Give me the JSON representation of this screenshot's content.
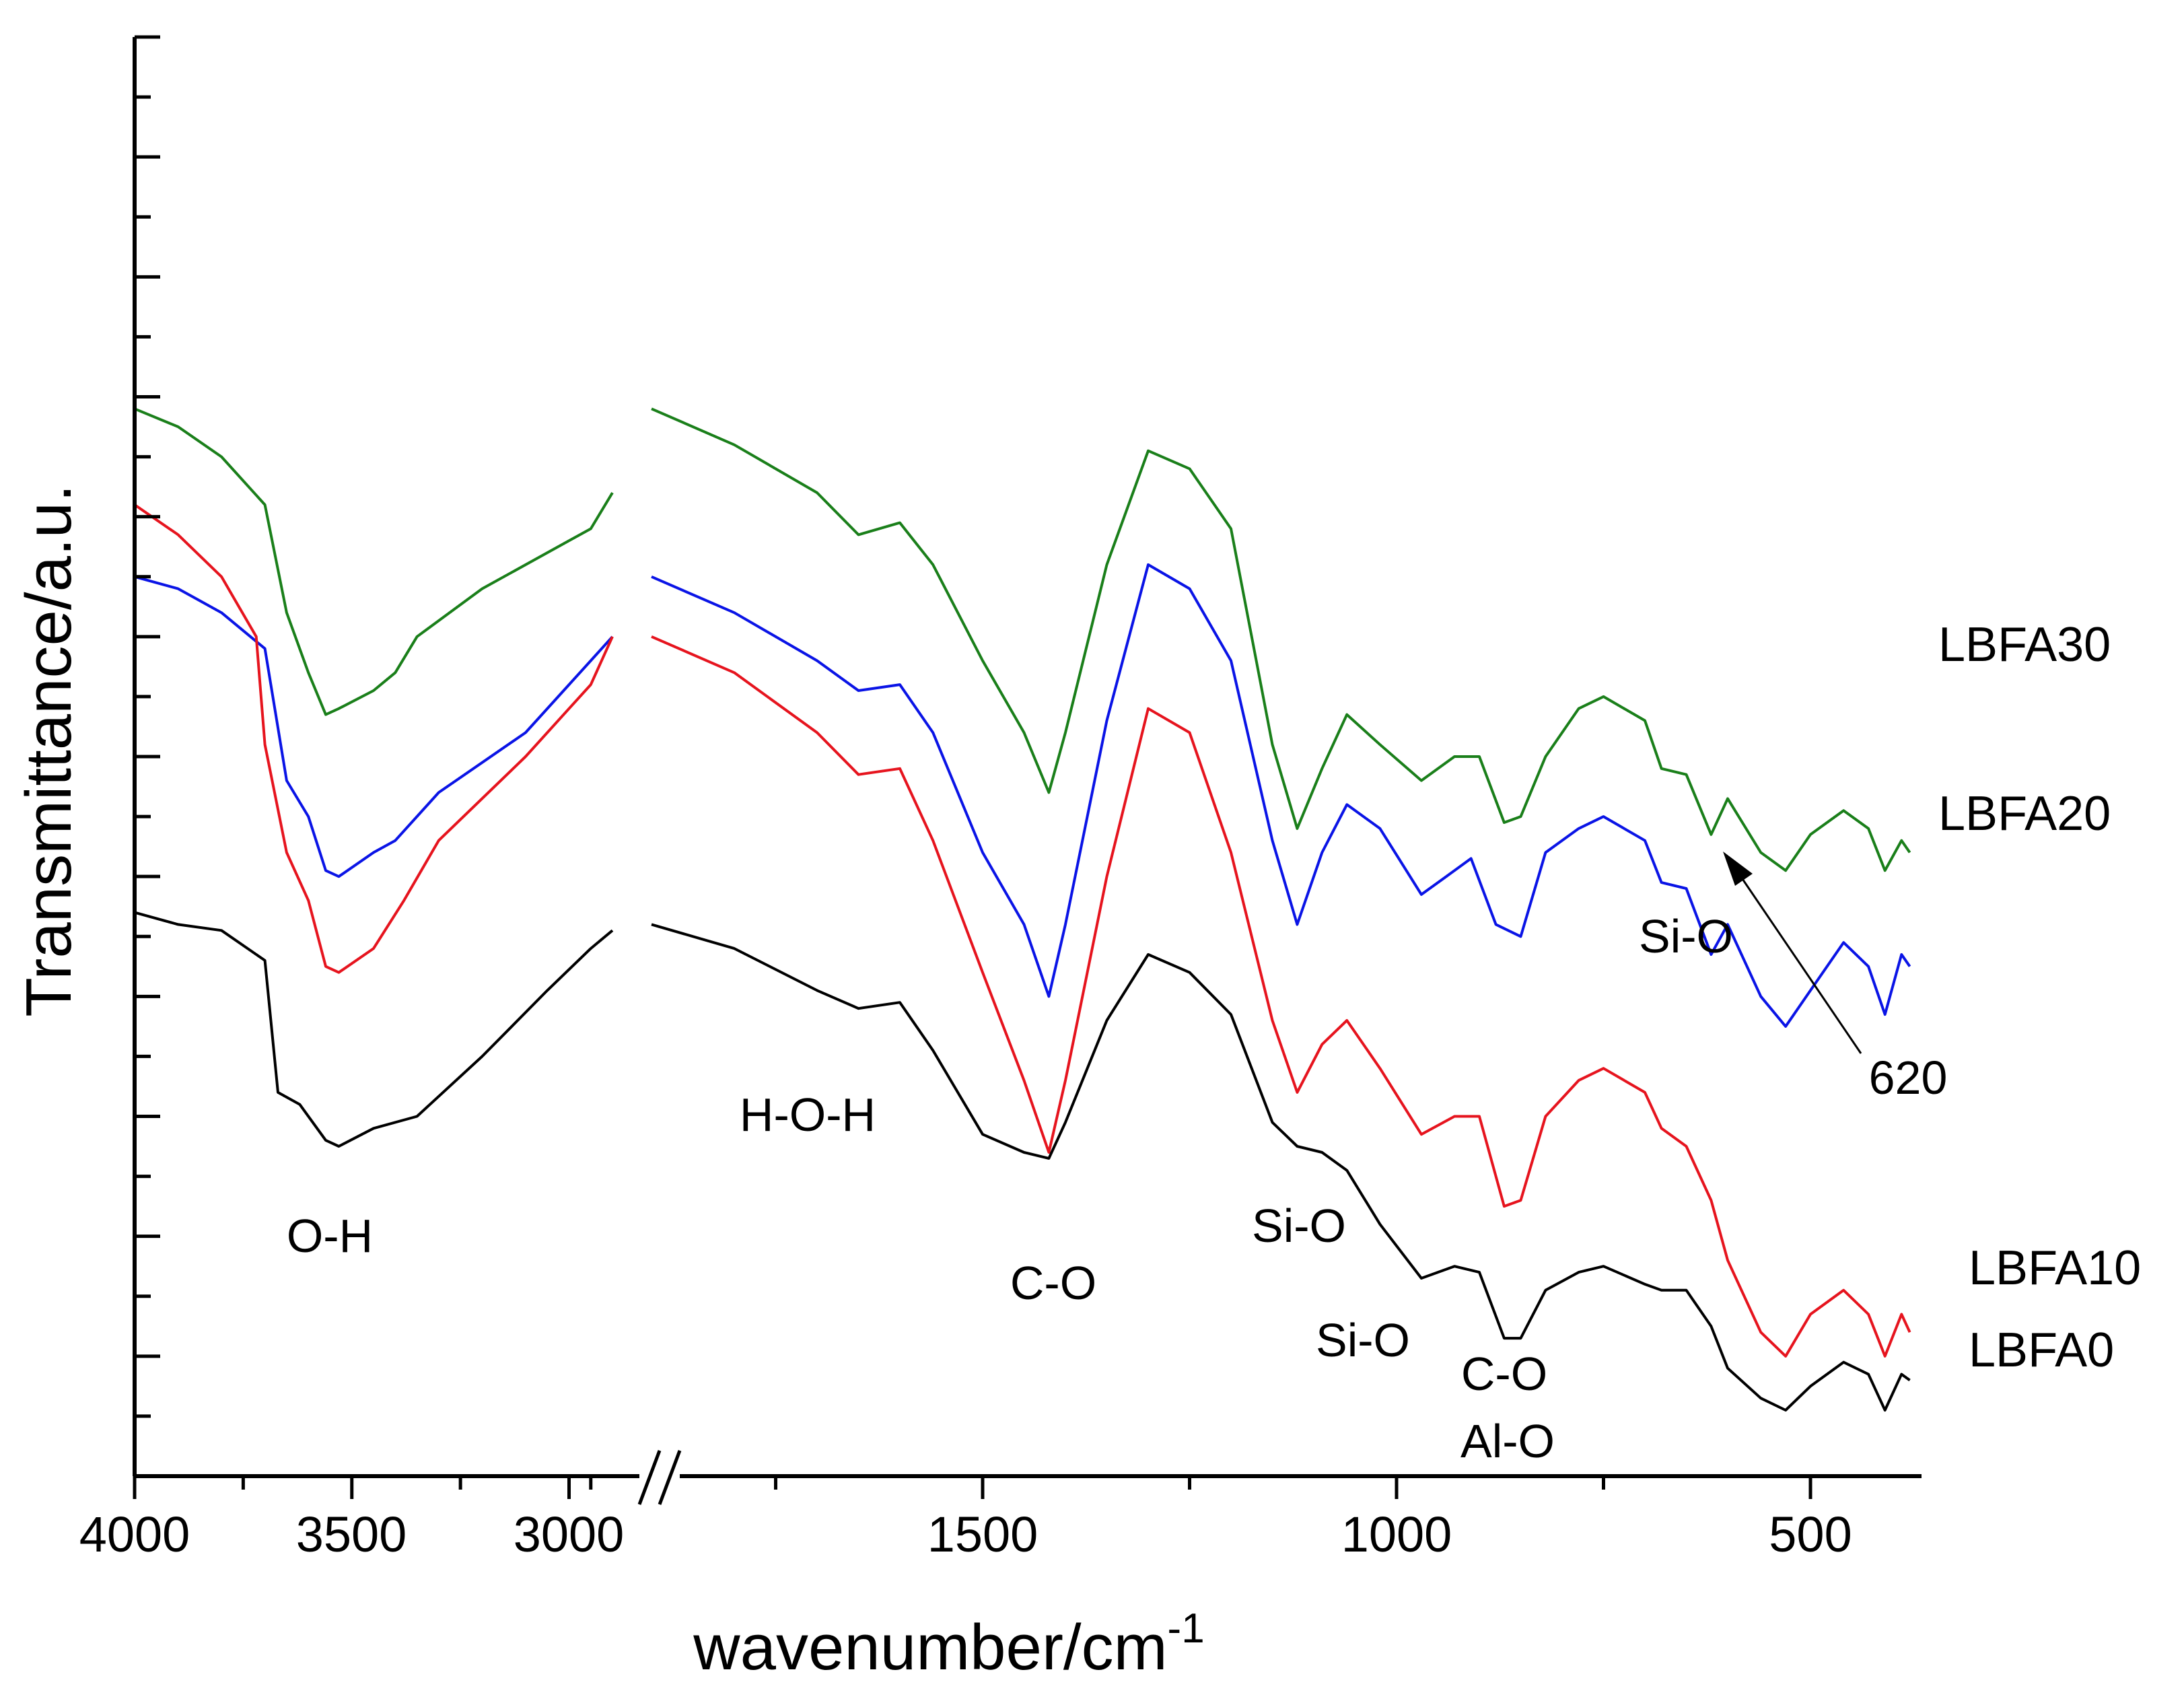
{
  "chart_data": {
    "type": "line",
    "title": "",
    "xlabel": "wavenumber/cm",
    "xlabel_sup": "-1",
    "ylabel": "Transmittance/a.u.",
    "x_reversed": true,
    "xlim": [
      4000,
      400
    ],
    "axis_break": {
      "from": 2900,
      "to": 1900
    },
    "x_ticks": [
      {
        "value": 4000,
        "label": "4000"
      },
      {
        "value": 3500,
        "label": "3500"
      },
      {
        "value": 3000,
        "label": "3000"
      },
      {
        "value": 1500,
        "label": "1500"
      },
      {
        "value": 1000,
        "label": "1000"
      },
      {
        "value": 500,
        "label": "500"
      }
    ],
    "ylim": [
      0,
      12
    ],
    "y_tick_labels_shown": false,
    "series": [
      {
        "name": "LBFA30",
        "color": "#1a7f1a",
        "points": [
          [
            4000,
            8.9
          ],
          [
            3900,
            8.75
          ],
          [
            3800,
            8.5
          ],
          [
            3700,
            8.1
          ],
          [
            3650,
            7.2
          ],
          [
            3600,
            6.7
          ],
          [
            3560,
            6.35
          ],
          [
            3530,
            6.4
          ],
          [
            3450,
            6.55
          ],
          [
            3400,
            6.7
          ],
          [
            3350,
            7.0
          ],
          [
            3200,
            7.4
          ],
          [
            3000,
            7.8
          ],
          [
            2950,
            7.9
          ],
          [
            2900,
            8.2
          ],
          [
            1900,
            8.9
          ],
          [
            1800,
            8.6
          ],
          [
            1700,
            8.2
          ],
          [
            1650,
            7.85
          ],
          [
            1600,
            7.95
          ],
          [
            1560,
            7.6
          ],
          [
            1500,
            6.8
          ],
          [
            1450,
            6.2
          ],
          [
            1420,
            5.7
          ],
          [
            1400,
            6.2
          ],
          [
            1350,
            7.6
          ],
          [
            1300,
            8.55
          ],
          [
            1250,
            8.4
          ],
          [
            1200,
            7.9
          ],
          [
            1150,
            6.1
          ],
          [
            1120,
            5.4
          ],
          [
            1090,
            5.9
          ],
          [
            1060,
            6.35
          ],
          [
            1020,
            6.1
          ],
          [
            970,
            5.8
          ],
          [
            930,
            6.0
          ],
          [
            900,
            6.0
          ],
          [
            870,
            5.45
          ],
          [
            850,
            5.5
          ],
          [
            820,
            6.0
          ],
          [
            780,
            6.4
          ],
          [
            750,
            6.5
          ],
          [
            700,
            6.3
          ],
          [
            680,
            5.9
          ],
          [
            650,
            5.85
          ],
          [
            620,
            5.35
          ],
          [
            600,
            5.65
          ],
          [
            560,
            5.2
          ],
          [
            530,
            5.05
          ],
          [
            500,
            5.35
          ],
          [
            460,
            5.55
          ],
          [
            430,
            5.4
          ],
          [
            410,
            5.05
          ],
          [
            390,
            5.3
          ],
          [
            380,
            5.2
          ]
        ]
      },
      {
        "name": "LBFA20",
        "color": "#0a14e6",
        "points": [
          [
            4000,
            7.5
          ],
          [
            3900,
            7.4
          ],
          [
            3800,
            7.2
          ],
          [
            3700,
            6.9
          ],
          [
            3650,
            5.8
          ],
          [
            3600,
            5.5
          ],
          [
            3560,
            5.05
          ],
          [
            3530,
            5.0
          ],
          [
            3450,
            5.2
          ],
          [
            3400,
            5.3
          ],
          [
            3300,
            5.7
          ],
          [
            3100,
            6.2
          ],
          [
            3000,
            6.6
          ],
          [
            2950,
            6.8
          ],
          [
            2900,
            7.0
          ],
          [
            1900,
            7.5
          ],
          [
            1800,
            7.2
          ],
          [
            1700,
            6.8
          ],
          [
            1650,
            6.55
          ],
          [
            1600,
            6.6
          ],
          [
            1560,
            6.2
          ],
          [
            1500,
            5.2
          ],
          [
            1450,
            4.6
          ],
          [
            1420,
            4.0
          ],
          [
            1400,
            4.6
          ],
          [
            1350,
            6.3
          ],
          [
            1300,
            7.6
          ],
          [
            1250,
            7.4
          ],
          [
            1200,
            6.8
          ],
          [
            1150,
            5.3
          ],
          [
            1120,
            4.6
          ],
          [
            1090,
            5.2
          ],
          [
            1060,
            5.6
          ],
          [
            1020,
            5.4
          ],
          [
            970,
            4.85
          ],
          [
            940,
            5.0
          ],
          [
            910,
            5.15
          ],
          [
            880,
            4.6
          ],
          [
            850,
            4.5
          ],
          [
            820,
            5.2
          ],
          [
            780,
            5.4
          ],
          [
            750,
            5.5
          ],
          [
            700,
            5.3
          ],
          [
            680,
            4.95
          ],
          [
            650,
            4.9
          ],
          [
            620,
            4.35
          ],
          [
            600,
            4.6
          ],
          [
            560,
            4.0
          ],
          [
            530,
            3.75
          ],
          [
            500,
            4.05
          ],
          [
            460,
            4.45
          ],
          [
            430,
            4.25
          ],
          [
            410,
            3.85
          ],
          [
            390,
            4.35
          ],
          [
            380,
            4.25
          ]
        ]
      },
      {
        "name": "LBFA10",
        "color": "#e6141e",
        "points": [
          [
            4000,
            8.1
          ],
          [
            3900,
            7.85
          ],
          [
            3800,
            7.5
          ],
          [
            3720,
            7.0
          ],
          [
            3700,
            6.1
          ],
          [
            3650,
            5.2
          ],
          [
            3600,
            4.8
          ],
          [
            3560,
            4.25
          ],
          [
            3530,
            4.2
          ],
          [
            3450,
            4.4
          ],
          [
            3380,
            4.8
          ],
          [
            3300,
            5.3
          ],
          [
            3100,
            6.0
          ],
          [
            3000,
            6.4
          ],
          [
            2950,
            6.6
          ],
          [
            2900,
            7.0
          ],
          [
            1900,
            7.0
          ],
          [
            1800,
            6.7
          ],
          [
            1700,
            6.2
          ],
          [
            1650,
            5.85
          ],
          [
            1600,
            5.9
          ],
          [
            1560,
            5.3
          ],
          [
            1500,
            4.2
          ],
          [
            1450,
            3.3
          ],
          [
            1420,
            2.7
          ],
          [
            1400,
            3.3
          ],
          [
            1350,
            5.0
          ],
          [
            1300,
            6.4
          ],
          [
            1250,
            6.2
          ],
          [
            1200,
            5.2
          ],
          [
            1150,
            3.8
          ],
          [
            1120,
            3.2
          ],
          [
            1090,
            3.6
          ],
          [
            1060,
            3.8
          ],
          [
            1020,
            3.4
          ],
          [
            970,
            2.85
          ],
          [
            930,
            3.0
          ],
          [
            900,
            3.0
          ],
          [
            870,
            2.25
          ],
          [
            850,
            2.3
          ],
          [
            820,
            3.0
          ],
          [
            780,
            3.3
          ],
          [
            750,
            3.4
          ],
          [
            700,
            3.2
          ],
          [
            680,
            2.9
          ],
          [
            650,
            2.75
          ],
          [
            620,
            2.3
          ],
          [
            600,
            1.8
          ],
          [
            560,
            1.2
          ],
          [
            530,
            1.0
          ],
          [
            500,
            1.35
          ],
          [
            460,
            1.55
          ],
          [
            430,
            1.35
          ],
          [
            410,
            1.0
          ],
          [
            390,
            1.35
          ],
          [
            380,
            1.2
          ]
        ]
      },
      {
        "name": "LBFA0",
        "color": "#000000",
        "points": [
          [
            4000,
            4.7
          ],
          [
            3900,
            4.6
          ],
          [
            3800,
            4.55
          ],
          [
            3700,
            4.3
          ],
          [
            3670,
            3.2
          ],
          [
            3620,
            3.1
          ],
          [
            3560,
            2.8
          ],
          [
            3530,
            2.75
          ],
          [
            3450,
            2.9
          ],
          [
            3350,
            3.0
          ],
          [
            3200,
            3.5
          ],
          [
            3050,
            4.05
          ],
          [
            2950,
            4.4
          ],
          [
            2900,
            4.55
          ],
          [
            1900,
            4.6
          ],
          [
            1800,
            4.4
          ],
          [
            1700,
            4.05
          ],
          [
            1650,
            3.9
          ],
          [
            1600,
            3.95
          ],
          [
            1560,
            3.55
          ],
          [
            1500,
            2.85
          ],
          [
            1450,
            2.7
          ],
          [
            1420,
            2.65
          ],
          [
            1400,
            2.95
          ],
          [
            1350,
            3.8
          ],
          [
            1300,
            4.35
          ],
          [
            1250,
            4.2
          ],
          [
            1200,
            3.85
          ],
          [
            1150,
            2.95
          ],
          [
            1120,
            2.75
          ],
          [
            1090,
            2.7
          ],
          [
            1060,
            2.55
          ],
          [
            1020,
            2.1
          ],
          [
            970,
            1.65
          ],
          [
            930,
            1.75
          ],
          [
            900,
            1.7
          ],
          [
            870,
            1.15
          ],
          [
            850,
            1.15
          ],
          [
            820,
            1.55
          ],
          [
            780,
            1.7
          ],
          [
            750,
            1.75
          ],
          [
            700,
            1.6
          ],
          [
            680,
            1.55
          ],
          [
            650,
            1.55
          ],
          [
            620,
            1.25
          ],
          [
            600,
            0.9
          ],
          [
            560,
            0.65
          ],
          [
            530,
            0.55
          ],
          [
            500,
            0.75
          ],
          [
            460,
            0.95
          ],
          [
            430,
            0.85
          ],
          [
            410,
            0.55
          ],
          [
            390,
            0.85
          ],
          [
            380,
            0.8
          ]
        ]
      }
    ],
    "legend_labels": [
      {
        "series": "LBFA30",
        "text": "LBFA30"
      },
      {
        "series": "LBFA20",
        "text": "LBFA20"
      },
      {
        "series": "LBFA10",
        "text": "LBFA10"
      },
      {
        "series": "LBFA0",
        "text": "LBFA0"
      }
    ],
    "annotations": [
      {
        "id": "oh",
        "text": "O-H"
      },
      {
        "id": "hoh",
        "text": "H-O-H"
      },
      {
        "id": "co1",
        "text": "C-O"
      },
      {
        "id": "sio1",
        "text": "Si-O"
      },
      {
        "id": "sio2",
        "text": "Si-O"
      },
      {
        "id": "co2",
        "text": "C-O"
      },
      {
        "id": "alo",
        "text": "Al-O"
      },
      {
        "id": "sio3",
        "text": "Si-O"
      },
      {
        "id": "n620",
        "text": "620"
      }
    ]
  }
}
